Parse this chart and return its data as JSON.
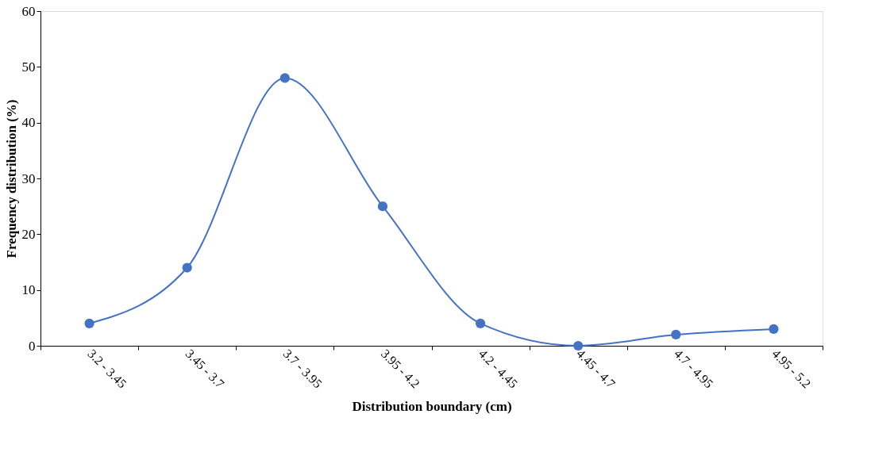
{
  "chart_data": {
    "type": "line",
    "xlabel": "Distribution boundary (cm)",
    "ylabel": "Frequency distribution (%)",
    "categories": [
      "3.2 - 3.45",
      "3.45 - 3.7",
      "3.7 - 3.95",
      "3.95 - 4.2",
      "4.2 - 4.45",
      "4.45 - 4.7",
      "4.7 - 4.95",
      "4.95 - 5.2"
    ],
    "series": [
      {
        "color": "#4472c4",
        "values": [
          4,
          14,
          48,
          25,
          4,
          0,
          2,
          3
        ]
      }
    ],
    "ylim": [
      0,
      60
    ],
    "yticks": [
      0,
      10,
      20,
      30,
      40,
      50,
      60
    ],
    "grid": false,
    "marker": "circle",
    "line_style": "solid"
  }
}
